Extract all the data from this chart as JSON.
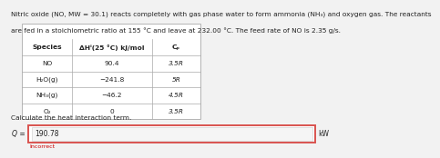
{
  "line1": "Nitric oxide (NO, MW = 30.1) reacts completely with gas phase water to form ammonia (NH₃) and oxygen gas. The reactants",
  "line2": "are fed in a stoichiometric ratio at 155 °C and leave at 232.00 °C. The feed rate of NO is 2.35 g/s.",
  "col_headers": [
    "Species",
    "ΔHⁱ(25 °C) kJ/mol",
    "Cₚ"
  ],
  "table_rows": [
    [
      "NO",
      "90.4",
      "3.5R"
    ],
    [
      "H₂O(g)",
      "−241.8",
      "5R"
    ],
    [
      "NH₃(g)",
      "−46.2",
      "4.5R"
    ],
    [
      "O₂",
      "0",
      "3.5R"
    ]
  ],
  "calc_label": "Calculate the heat interaction term.",
  "q_label": "Q =",
  "q_value": "190.78",
  "q_unit": "kW",
  "incorrect_label": "Incorrect",
  "bg_color": "#f2f2f2",
  "white": "#ffffff",
  "input_bg": "#f5f5f5",
  "border_color": "#aaaaaa",
  "red_border": "#d9534f",
  "red_text": "#cc0000",
  "text_color": "#222222",
  "title_fs": 5.3,
  "header_fs": 5.4,
  "cell_fs": 5.3,
  "label_fs": 5.5
}
